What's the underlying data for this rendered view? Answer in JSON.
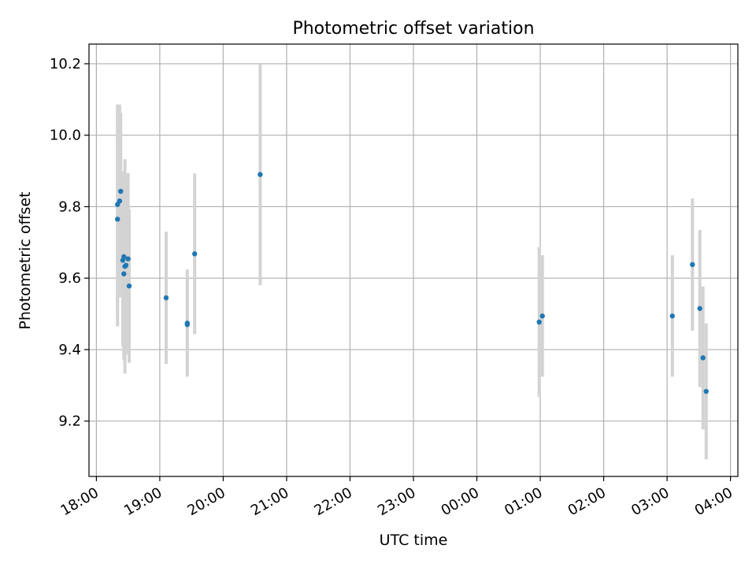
{
  "chart_data": {
    "type": "scatter",
    "title": "Photometric offset variation",
    "xlabel": "UTC time",
    "ylabel": "Photometric offset",
    "x_ticks": [
      "18:00",
      "19:00",
      "20:00",
      "21:00",
      "22:00",
      "23:00",
      "00:00",
      "01:00",
      "02:00",
      "03:00",
      "04:00"
    ],
    "y_ticks": [
      "9.2",
      "9.4",
      "9.6",
      "9.8",
      "10.0",
      "10.2"
    ],
    "xlim": [
      "17:53",
      "04:07"
    ],
    "ylim": [
      9.045,
      10.255
    ],
    "grid": true,
    "colors": {
      "points": "#1f77b4",
      "errorbars": "#d3d3d3",
      "grid": "#b0b0b0"
    },
    "series": [
      {
        "points": [
          {
            "x": "18:20",
            "y": 9.765,
            "err": 0.3
          },
          {
            "x": "18:20",
            "y": 9.806,
            "err": 0.28
          },
          {
            "x": "18:22",
            "y": 9.816,
            "err": 0.27
          },
          {
            "x": "18:23",
            "y": 9.843,
            "err": 0.22
          },
          {
            "x": "18:25",
            "y": 9.65,
            "err": 0.24
          },
          {
            "x": "18:26",
            "y": 9.612,
            "err": 0.24
          },
          {
            "x": "18:26",
            "y": 9.66,
            "err": 0.24
          },
          {
            "x": "18:27",
            "y": 9.633,
            "err": 0.3
          },
          {
            "x": "18:28",
            "y": 9.636,
            "err": 0.25
          },
          {
            "x": "18:30",
            "y": 9.654,
            "err": 0.24
          },
          {
            "x": "18:31",
            "y": 9.578,
            "err": 0.215
          },
          {
            "x": "19:06",
            "y": 9.545,
            "err": 0.185
          },
          {
            "x": "19:26",
            "y": 9.474,
            "err": 0.15
          },
          {
            "x": "19:26",
            "y": 9.47,
            "err": 0.14
          },
          {
            "x": "19:33",
            "y": 9.668,
            "err": 0.225
          },
          {
            "x": "20:35",
            "y": 9.89,
            "err": 0.31
          },
          {
            "x": "00:59",
            "y": 9.477,
            "err": 0.21
          },
          {
            "x": "01:02",
            "y": 9.494,
            "err": 0.17
          },
          {
            "x": "03:05",
            "y": 9.494,
            "err": 0.17
          },
          {
            "x": "03:24",
            "y": 9.638,
            "err": 0.185
          },
          {
            "x": "03:31",
            "y": 9.515,
            "err": 0.22
          },
          {
            "x": "03:34",
            "y": 9.377,
            "err": 0.2
          },
          {
            "x": "03:37",
            "y": 9.283,
            "err": 0.19
          }
        ]
      }
    ]
  }
}
